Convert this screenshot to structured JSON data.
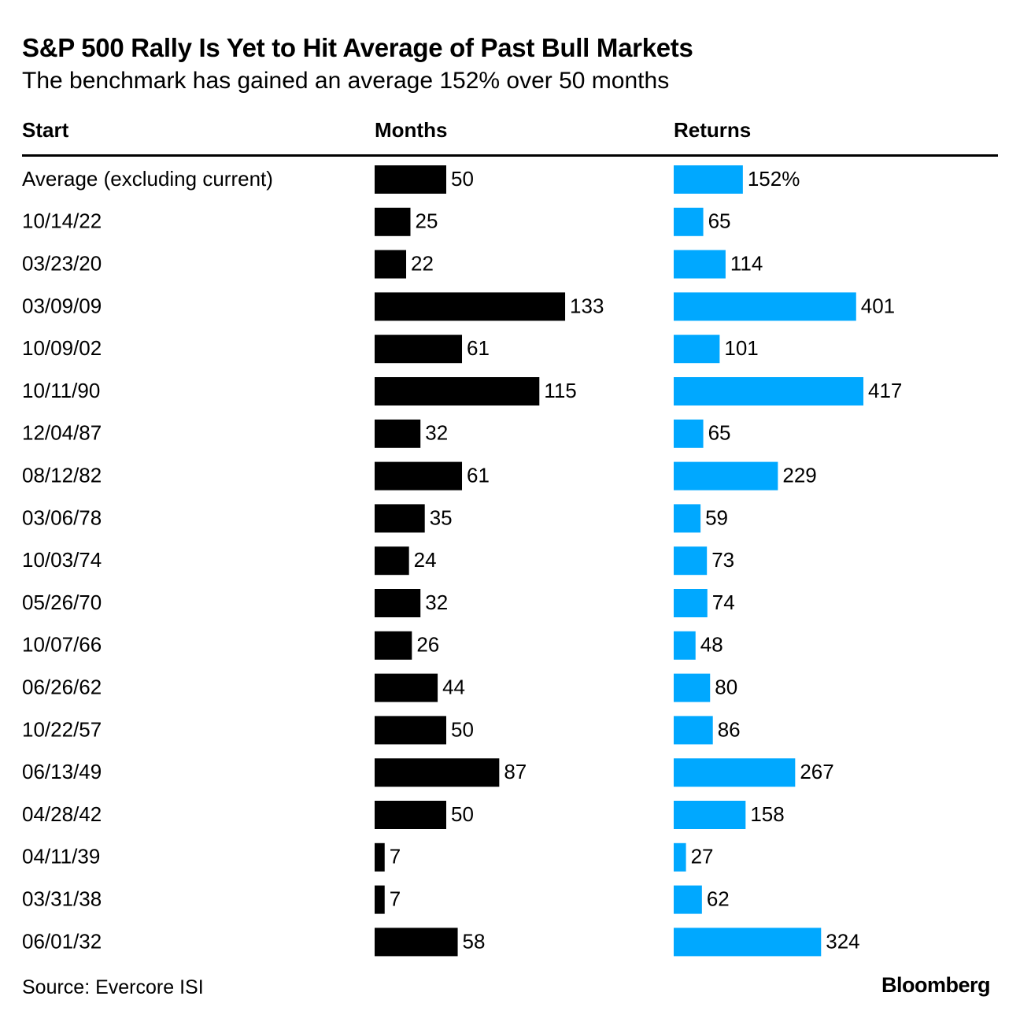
{
  "header": {
    "title": "S&P 500 Rally Is Yet to Hit Average of Past Bull Markets",
    "subtitle": "The benchmark has gained an average 152% over 50 months"
  },
  "columns": {
    "start": "Start",
    "months": "Months",
    "returns": "Returns"
  },
  "colors": {
    "months_bar": "#000000",
    "returns_bar": "#00a8ff"
  },
  "footer": {
    "source": "Source: Evercore ISI",
    "brand": "Bloomberg"
  },
  "chart_data": {
    "type": "bar",
    "title": "S&P 500 Rally Is Yet to Hit Average of Past Bull Markets",
    "subtitle": "The benchmark has gained an average 152% over 50 months",
    "orientation": "horizontal",
    "categories": [
      "Average (excluding current)",
      "10/14/22",
      "03/23/20",
      "03/09/09",
      "10/09/02",
      "10/11/90",
      "12/04/87",
      "08/12/82",
      "03/06/78",
      "10/03/74",
      "05/26/70",
      "10/07/66",
      "06/26/62",
      "10/22/57",
      "06/13/49",
      "04/28/42",
      "04/11/39",
      "03/31/38",
      "06/01/32"
    ],
    "series": [
      {
        "name": "Months",
        "values": [
          50,
          25,
          22,
          133,
          61,
          115,
          32,
          61,
          35,
          24,
          32,
          26,
          44,
          50,
          87,
          50,
          7,
          7,
          58
        ],
        "labels": [
          "50",
          "25",
          "22",
          "133",
          "61",
          "115",
          "32",
          "61",
          "35",
          "24",
          "32",
          "26",
          "44",
          "50",
          "87",
          "50",
          "7",
          "7",
          "58"
        ],
        "color": "#000000"
      },
      {
        "name": "Returns",
        "values": [
          152,
          65,
          114,
          401,
          101,
          417,
          65,
          229,
          59,
          73,
          74,
          48,
          80,
          86,
          267,
          158,
          27,
          62,
          324
        ],
        "labels": [
          "152%",
          "65",
          "114",
          "401",
          "101",
          "417",
          "65",
          "229",
          "59",
          "73",
          "74",
          "48",
          "80",
          "86",
          "267",
          "158",
          "27",
          "62",
          "324"
        ],
        "color": "#00a8ff"
      }
    ]
  }
}
